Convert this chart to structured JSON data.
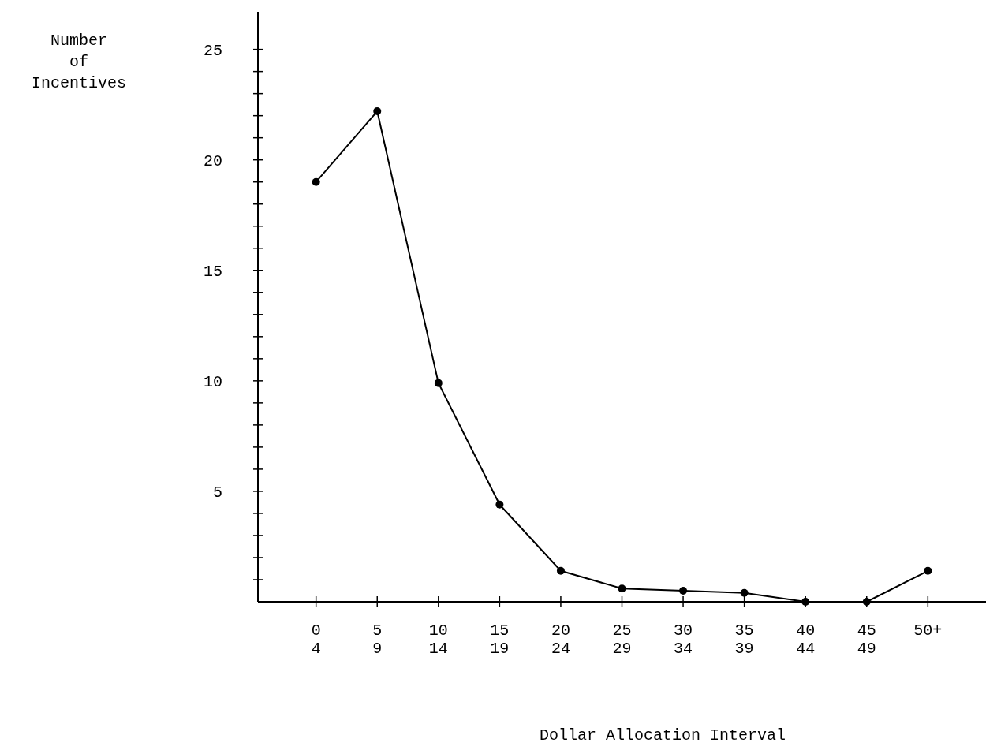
{
  "chart_data": {
    "type": "line",
    "xlabel": "Dollar Allocation Interval",
    "ylabel": "Number\nof\nIncentives",
    "categories": [
      "0\n4",
      "5\n9",
      "10\n14",
      "15\n19",
      "20\n24",
      "25\n29",
      "30\n34",
      "35\n39",
      "40\n44",
      "45\n49",
      "50+"
    ],
    "values": [
      19,
      22.2,
      9.9,
      4.4,
      1.4,
      0.6,
      0.5,
      0.4,
      0,
      0,
      1.4
    ],
    "color": "#000000",
    "marker": "circle",
    "line_style": "solid",
    "ylim": [
      0,
      26.7
    ],
    "yticks": [
      {
        "value": 1,
        "label": null
      },
      {
        "value": 2,
        "label": null
      },
      {
        "value": 3,
        "label": null
      },
      {
        "value": 4,
        "label": null
      },
      5,
      {
        "value": 6,
        "label": null
      },
      {
        "value": 7,
        "label": null
      },
      {
        "value": 8,
        "label": null
      },
      {
        "value": 9,
        "label": null
      },
      10,
      {
        "value": 11,
        "label": null
      },
      {
        "value": 12,
        "label": null
      },
      {
        "value": 13,
        "label": null
      },
      {
        "value": 14,
        "label": null
      },
      15,
      {
        "value": 16,
        "label": null
      },
      {
        "value": 17,
        "label": null
      },
      {
        "value": 18,
        "label": null
      },
      {
        "value": 19,
        "label": null
      },
      20,
      {
        "value": 21,
        "label": null
      },
      {
        "value": 22,
        "label": null
      },
      {
        "value": 23,
        "label": null
      },
      {
        "value": 24,
        "label": null
      },
      25
    ],
    "grid": false
  }
}
